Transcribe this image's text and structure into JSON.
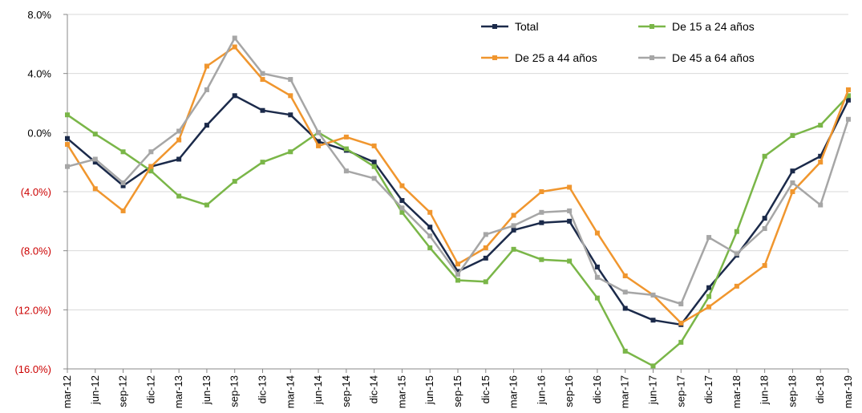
{
  "chart_data": {
    "type": "line",
    "title": "",
    "xlabel": "",
    "ylabel": "",
    "ylim": [
      -16,
      8
    ],
    "y_ticks": [
      {
        "value": 8,
        "label": "8.0%",
        "color": "#000000"
      },
      {
        "value": 4,
        "label": "4.0%",
        "color": "#000000"
      },
      {
        "value": 0,
        "label": "0.0%",
        "color": "#000000"
      },
      {
        "value": -4,
        "label": "(4.0%)",
        "color": "#cc0000"
      },
      {
        "value": -8,
        "label": "(8.0%)",
        "color": "#cc0000"
      },
      {
        "value": -12,
        "label": "(12.0%)",
        "color": "#cc0000"
      },
      {
        "value": -16,
        "label": "(16.0%)",
        "color": "#cc0000"
      }
    ],
    "categories": [
      "mar-12",
      "jun-12",
      "sep-12",
      "dic-12",
      "mar-13",
      "jun-13",
      "sep-13",
      "dic-13",
      "mar-14",
      "jun-14",
      "sep-14",
      "dic-14",
      "mar-15",
      "jun-15",
      "sep-15",
      "dic-15",
      "mar-16",
      "jun-16",
      "sep-16",
      "dic-16",
      "mar-17",
      "jun-17",
      "sep-17",
      "dic-17",
      "mar-18",
      "jun-18",
      "sep-18",
      "dic-18",
      "mar-19"
    ],
    "grid": "horizontal",
    "legend_position": "top-right",
    "series": [
      {
        "name": "Total",
        "color": "#1b2a4a",
        "values": [
          -0.4,
          -2.0,
          -3.6,
          -2.3,
          -1.8,
          0.5,
          2.5,
          1.5,
          1.2,
          -0.6,
          -1.2,
          -2.0,
          -4.6,
          -6.4,
          -9.4,
          -8.5,
          -6.6,
          -6.1,
          -6.0,
          -9.1,
          -11.9,
          -12.7,
          -13.0,
          -10.5,
          -8.3,
          -5.8,
          -2.6,
          -1.6,
          2.2
        ]
      },
      {
        "name": "De 15 a 24 años",
        "color": "#7ab648",
        "values": [
          1.2,
          -0.1,
          -1.3,
          -2.6,
          -4.3,
          -4.9,
          -3.3,
          -2.0,
          -1.3,
          0.0,
          -1.1,
          -2.3,
          -5.4,
          -7.8,
          -10.0,
          -10.1,
          -7.9,
          -8.6,
          -8.7,
          -11.2,
          -14.8,
          -15.8,
          -14.2,
          -11.1,
          -6.7,
          -1.6,
          -0.2,
          0.5,
          2.5
        ]
      },
      {
        "name": "De 25 a 44 años",
        "color": "#f0962e",
        "values": [
          -0.8,
          -3.8,
          -5.3,
          -2.3,
          -0.5,
          4.5,
          5.8,
          3.6,
          2.5,
          -0.9,
          -0.3,
          -0.9,
          -3.6,
          -5.4,
          -8.9,
          -7.8,
          -5.6,
          -4.0,
          -3.7,
          -6.8,
          -9.7,
          -11.0,
          -12.9,
          -11.8,
          -10.4,
          -9.0,
          -4.0,
          -2.0,
          2.9
        ]
      },
      {
        "name": "De 45 a 64 años",
        "color": "#a6a6a6",
        "values": [
          -2.3,
          -1.8,
          -3.4,
          -1.3,
          0.1,
          2.9,
          6.4,
          4.0,
          3.6,
          0.0,
          -2.6,
          -3.1,
          -5.1,
          -7.0,
          -9.6,
          -6.9,
          -6.3,
          -5.4,
          -5.3,
          -9.8,
          -10.8,
          -11.0,
          -11.6,
          -7.1,
          -8.2,
          -6.5,
          -3.4,
          -4.9,
          0.9
        ]
      }
    ]
  }
}
